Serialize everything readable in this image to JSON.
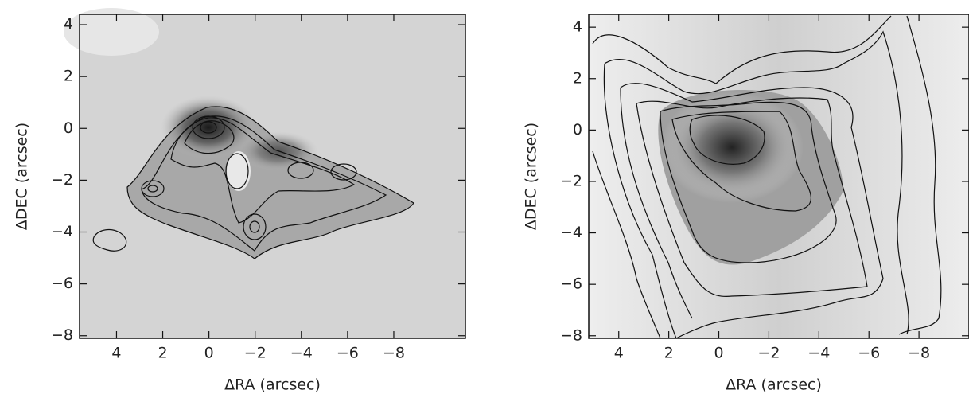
{
  "chart_data": [
    {
      "type": "contour",
      "x_label": "ΔRA (arcsec)",
      "y_label": "ΔDEC (arcsec)",
      "xlim": [
        5.6,
        -11.1
      ],
      "ylim": [
        -8.1,
        4.4
      ],
      "xticks": [
        4,
        2,
        0,
        {
          "value": -2,
          "label": "−2"
        },
        {
          "value": -4,
          "label": "−4"
        },
        {
          "value": -6,
          "label": "−6"
        },
        {
          "value": -8,
          "label": "−8"
        }
      ],
      "yticks": [
        4,
        2,
        0,
        {
          "value": -2,
          "label": "−2"
        },
        {
          "value": -4,
          "label": "−4"
        },
        {
          "value": -6,
          "label": "−6"
        },
        {
          "value": -8,
          "label": "−8"
        }
      ]
    },
    {
      "type": "contour",
      "x_label": "ΔRA (arcsec)",
      "y_label": "ΔDEC (arcsec)",
      "xlim": [
        5.2,
        -10
      ],
      "ylim": [
        -8.1,
        4.5
      ],
      "xticks": [
        4,
        2,
        0,
        {
          "value": -2,
          "label": "−2"
        },
        {
          "value": -4,
          "label": "−4"
        },
        {
          "value": -6,
          "label": "−6"
        },
        {
          "value": -8,
          "label": "−8"
        }
      ],
      "yticks": [
        4,
        2,
        0,
        {
          "value": -2,
          "label": "−2"
        },
        {
          "value": -4,
          "label": "−4"
        },
        {
          "value": -6,
          "label": "−6"
        },
        {
          "value": -8,
          "label": "−8"
        }
      ]
    }
  ]
}
